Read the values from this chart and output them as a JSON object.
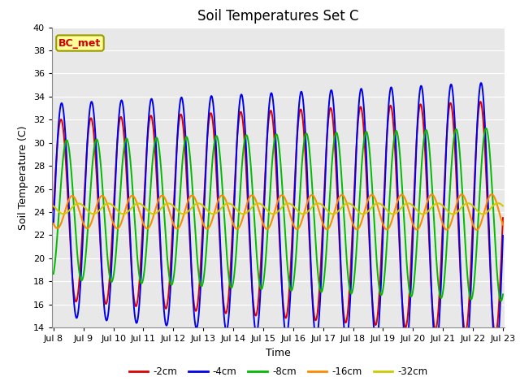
{
  "title": "Soil Temperatures Set C",
  "xlabel": "Time",
  "ylabel": "Soil Temperature (C)",
  "ylim": [
    14,
    40
  ],
  "yticks": [
    14,
    16,
    18,
    20,
    22,
    24,
    26,
    28,
    30,
    32,
    34,
    36,
    38,
    40
  ],
  "annotation_text": "BC_met",
  "annotation_color": "#cc0000",
  "annotation_bg": "#ffff99",
  "annotation_border": "#999900",
  "xtick_labels": [
    "Jul 8",
    "Jul 9",
    "Jul 10",
    "Jul 11",
    "Jul 12",
    "Jul 13",
    "Jul 14",
    "Jul 15",
    "Jul 16",
    "Jul 17",
    "Jul 18",
    "Jul 19",
    "Jul 20",
    "Jul 21",
    "Jul 22",
    "Jul 23"
  ],
  "xtick_positions": [
    0,
    1,
    2,
    3,
    4,
    5,
    6,
    7,
    8,
    9,
    10,
    11,
    12,
    13,
    14,
    15
  ],
  "xmin": -0.05,
  "xmax": 15.05,
  "bg_color": "#e8e8e8",
  "grid_color": "#ffffff",
  "legend_labels": [
    "-2cm",
    "-4cm",
    "-8cm",
    "-16cm",
    "-32cm"
  ],
  "legend_colors": [
    "#dd0000",
    "#0000ee",
    "#00bb00",
    "#ff8800",
    "#cccc00"
  ],
  "series_colors": {
    "-2cm": "#dd0000",
    "-4cm": "#0000ee",
    "-8cm": "#00bb00",
    "-16cm": "#ff8800",
    "-32cm": "#cccc00"
  }
}
